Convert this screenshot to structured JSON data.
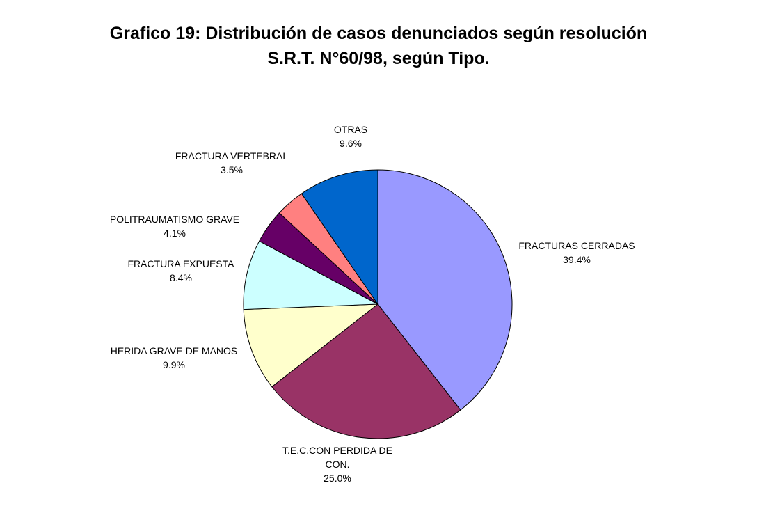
{
  "chart_data": {
    "type": "pie",
    "title_lines": [
      "Grafico 19: Distribución de casos denunciados según resolución",
      "S.R.T. N°60/98, según Tipo."
    ],
    "start_angle_deg": 0,
    "direction": "clockwise",
    "slices": [
      {
        "label_lines": [
          "FRACTURAS CERRADAS"
        ],
        "percent_label": "39.4%",
        "value": 39.4,
        "color": "#9999FF"
      },
      {
        "label_lines": [
          "T.E.C.CON PERDIDA DE",
          "CON."
        ],
        "percent_label": "25.0%",
        "value": 25.0,
        "color": "#993366"
      },
      {
        "label_lines": [
          "HERIDA GRAVE DE MANOS"
        ],
        "percent_label": "9.9%",
        "value": 9.9,
        "color": "#FFFFCC"
      },
      {
        "label_lines": [
          "FRACTURA EXPUESTA"
        ],
        "percent_label": "8.4%",
        "value": 8.4,
        "color": "#CCFFFF"
      },
      {
        "label_lines": [
          "POLITRAUMATISMO GRAVE"
        ],
        "percent_label": "4.1%",
        "value": 4.1,
        "color": "#660066"
      },
      {
        "label_lines": [
          "FRACTURA VERTEBRAL"
        ],
        "percent_label": "3.5%",
        "value": 3.5,
        "color": "#FF8080"
      },
      {
        "label_lines": [
          "OTRAS"
        ],
        "percent_label": "9.6%",
        "value": 9.6,
        "color": "#0066CC"
      }
    ]
  }
}
